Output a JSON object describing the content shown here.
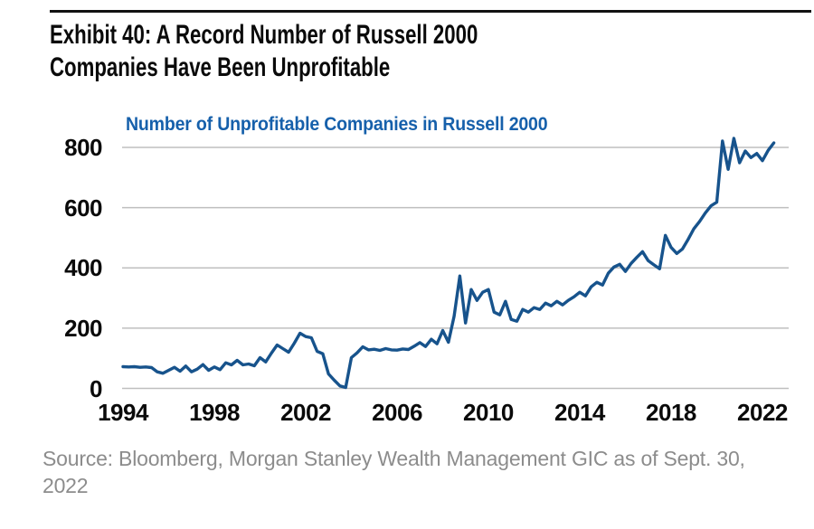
{
  "header": {
    "rule": "divider",
    "title": "Exhibit 40: A Record Number of Russell 2000 Companies Have Been Unprofitable"
  },
  "footer": {
    "source_line1": "Source: Bloomberg, Morgan Stanley Wealth Management GIC as of Sept. 30,",
    "source_line2": "2022"
  },
  "colors": {
    "line": "#17538c",
    "chart_title": "#1660ab",
    "grid": "#bfbfbf",
    "axis_text": "#0a0a0a",
    "source_text": "#8c8c8c",
    "rule": "#111111"
  },
  "chart_data": {
    "type": "line",
    "title": "Number of Unprofitable Companies in Russell 2000",
    "xlabel": "",
    "ylabel": "",
    "xlim": [
      1994,
      2023.15
    ],
    "ylim": [
      0,
      800
    ],
    "x_ticks": [
      1994,
      1998,
      2002,
      2006,
      2010,
      2014,
      2018,
      2022
    ],
    "y_ticks": [
      0,
      200,
      400,
      600,
      800
    ],
    "grid": "horizontal",
    "legend": "none",
    "series": [
      {
        "name": "Number of Unprofitable Companies in Russell 2000",
        "color": "#17538c",
        "x_start": 1994,
        "x_step": 0.25,
        "x_unit": "year (quarterly)",
        "values": [
          72,
          71,
          72,
          70,
          71,
          69,
          55,
          50,
          60,
          70,
          57,
          74,
          55,
          64,
          79,
          60,
          71,
          62,
          85,
          78,
          93,
          78,
          81,
          75,
          102,
          88,
          117,
          144,
          132,
          120,
          150,
          183,
          172,
          168,
          123,
          115,
          48,
          27,
          8,
          3,
          102,
          118,
          138,
          128,
          130,
          126,
          132,
          128,
          127,
          131,
          129,
          140,
          152,
          139,
          163,
          148,
          192,
          153,
          240,
          373,
          217,
          328,
          292,
          319,
          328,
          253,
          244,
          289,
          229,
          223,
          262,
          253,
          268,
          262,
          283,
          274,
          289,
          277,
          292,
          304,
          319,
          307,
          337,
          352,
          343,
          382,
          403,
          412,
          388,
          415,
          435,
          454,
          424,
          410,
          397,
          508,
          468,
          448,
          463,
          495,
          530,
          554,
          582,
          606,
          618,
          821,
          727,
          830,
          749,
          788,
          766,
          780,
          756,
          790,
          815
        ]
      }
    ]
  }
}
